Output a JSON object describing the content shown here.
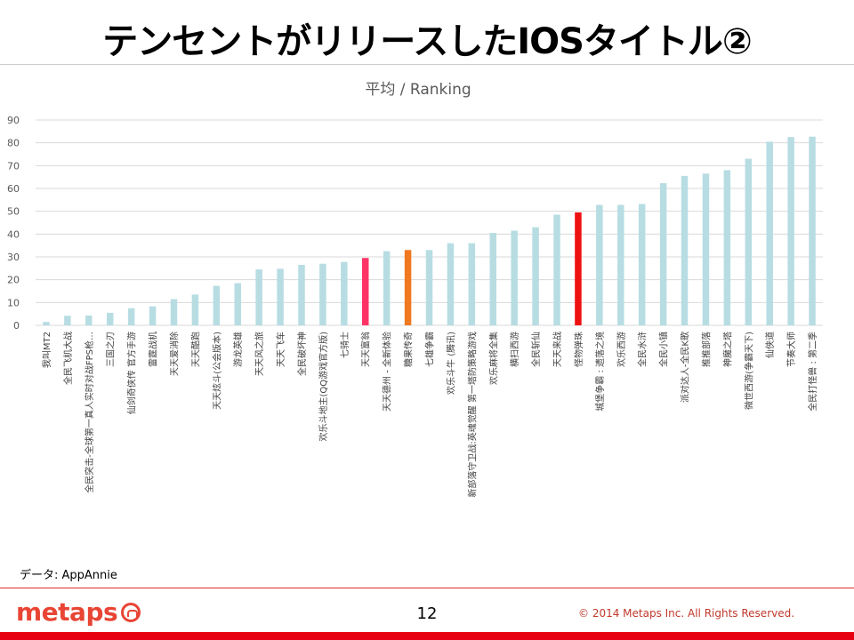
{
  "slide": {
    "title": "テンセントがリリースしたIOSタイトル②",
    "source": "データ: AppAnnie",
    "page_number": "12",
    "copyright": "© 2014  Metaps Inc. All Rights Reserved.",
    "logo_text": "metaps"
  },
  "colors": {
    "bar_default": "#b7dde3",
    "highlights": [
      "#ff3366",
      "#f07820",
      "#ee1111"
    ],
    "gridline": "#d9d9d9",
    "axis_text": "#595959",
    "brand_red": "#e60012"
  },
  "chart_data": {
    "type": "bar",
    "title": "平均 / Ranking",
    "xlabel": "",
    "ylabel": "",
    "ylim": [
      0,
      90
    ],
    "yticks": [
      0,
      10,
      20,
      30,
      40,
      50,
      60,
      70,
      80,
      90
    ],
    "grid": true,
    "categories": [
      "我叫MT2",
      "全民飞机大战",
      "全民突击-全球第一真人实时对战FPS枪…",
      "三国之刃",
      "仙剑奇侠传 官方手游",
      "雷霆战机",
      "天天爱消除",
      "天天酷跑",
      "天天炫斗(公会版本)",
      "游龙英雄",
      "天天风之旅",
      "天天飞车",
      "全民破坏神",
      "欢乐斗地主(QQ游戏官方版)",
      "七骑士",
      "天天富翁",
      "天天德州 - 全新体验",
      "糖果传奇",
      "七雄争霸",
      "欢乐斗牛 (腾讯)",
      "新部落守卫战:英魂觉醒 第一塔防策略游戏",
      "欢乐麻将全集",
      "横扫西游",
      "全民斩仙",
      "天天来战",
      "怪物弹珠",
      "城堡争霸 : 遗落之境",
      "欢乐西游",
      "全民水浒",
      "全民小镇",
      "派对达人-全民K歌",
      "推推部落",
      "神魔之塔",
      "微世西游(争霸天下)",
      "仙侠道",
      "节奏大师",
      "全民打怪兽 : 第二季"
    ],
    "values": [
      1.5,
      4.2,
      4.3,
      5.5,
      7.5,
      8.3,
      11.5,
      13.5,
      17.3,
      18.5,
      24.5,
      24.8,
      26.5,
      27,
      27.8,
      29.5,
      32.5,
      33,
      33,
      36,
      36,
      40.5,
      41.5,
      43,
      48.5,
      49.5,
      52.8,
      52.8,
      53.2,
      62.3,
      65.5,
      66.5,
      68,
      73,
      80.5,
      82.5,
      82.7
    ],
    "highlight_indices": [
      15,
      17,
      25
    ]
  }
}
